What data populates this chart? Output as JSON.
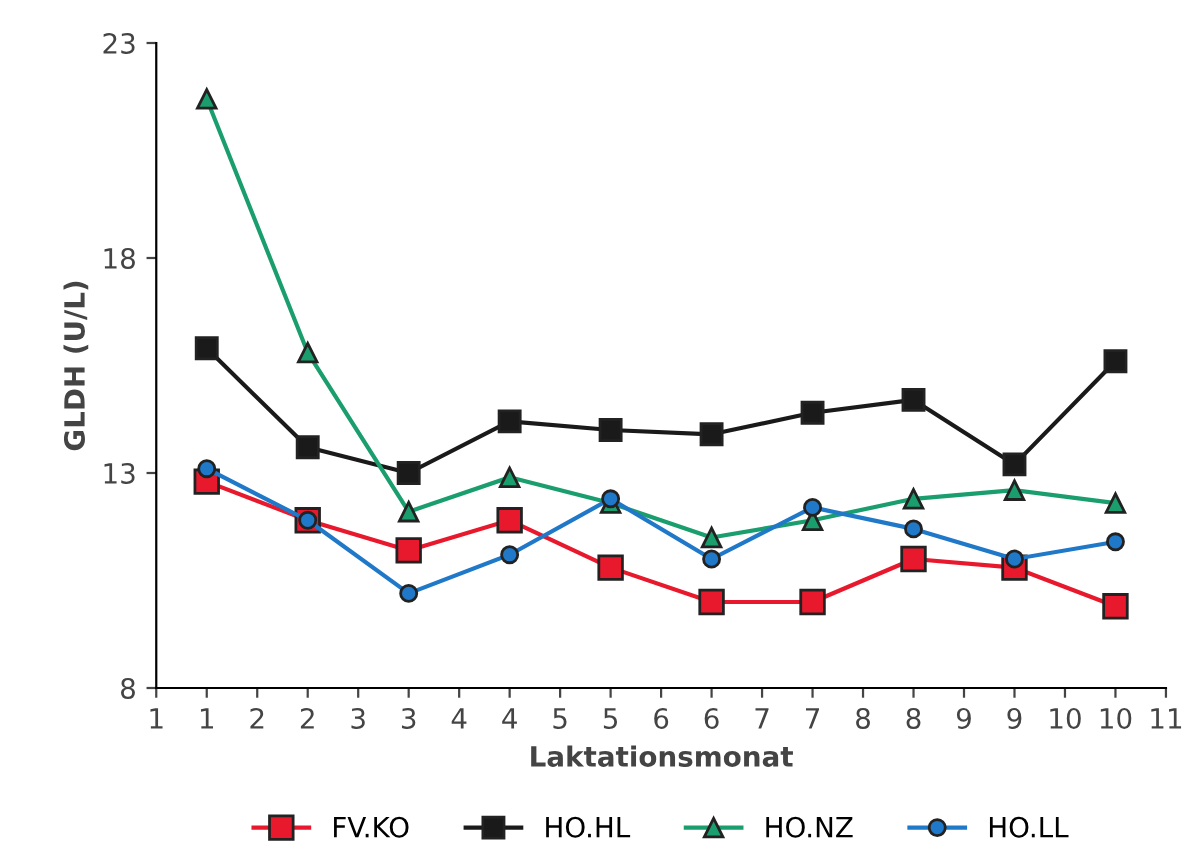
{
  "chart_data": {
    "type": "line",
    "xlabel": "Laktationsmonat",
    "ylabel": "GLDH (U/L)",
    "x": [
      1,
      2,
      3,
      4,
      5,
      6,
      7,
      8,
      9,
      10
    ],
    "xlim": [
      0.5,
      10.5
    ],
    "xticks": [
      {
        "value": 0.5,
        "label": "1"
      },
      1,
      {
        "value": 1.5,
        "label": "2"
      },
      2,
      {
        "value": 2.5,
        "label": "3"
      },
      3,
      {
        "value": 3.5,
        "label": "4"
      },
      4,
      {
        "value": 4.5,
        "label": "5"
      },
      5,
      {
        "value": 5.5,
        "label": "6"
      },
      6,
      {
        "value": 6.5,
        "label": "7"
      },
      7,
      {
        "value": 7.5,
        "label": "8"
      },
      8,
      {
        "value": 8.5,
        "label": "9"
      },
      9,
      {
        "value": 9.5,
        "label": "10"
      },
      10,
      {
        "value": 10.5,
        "label": "11"
      }
    ],
    "ylim": [
      8,
      23
    ],
    "yticks": [
      8,
      13,
      18,
      23
    ],
    "grid": false,
    "legend": "bottom",
    "series": [
      {
        "name": "FV.KO",
        "color": "#e8192c",
        "marker": "square",
        "values": [
          12.8,
          11.9,
          11.2,
          11.9,
          10.8,
          10.0,
          10.0,
          11.0,
          10.8,
          9.9
        ]
      },
      {
        "name": "HO.HL",
        "color": "#1a1a1a",
        "marker": "square",
        "values": [
          15.9,
          13.6,
          13.0,
          14.2,
          14.0,
          13.9,
          14.4,
          14.7,
          13.2,
          15.6
        ]
      },
      {
        "name": "HO.NZ",
        "color": "#1a9e6e",
        "marker": "triangle",
        "values": [
          21.7,
          15.8,
          12.1,
          12.9,
          12.3,
          11.5,
          11.9,
          12.4,
          12.6,
          12.3
        ]
      },
      {
        "name": "HO.LL",
        "color": "#1f78c8",
        "marker": "circle",
        "values": [
          13.1,
          11.9,
          10.2,
          11.1,
          12.4,
          11.0,
          12.2,
          11.7,
          11.0,
          11.4
        ]
      }
    ]
  }
}
